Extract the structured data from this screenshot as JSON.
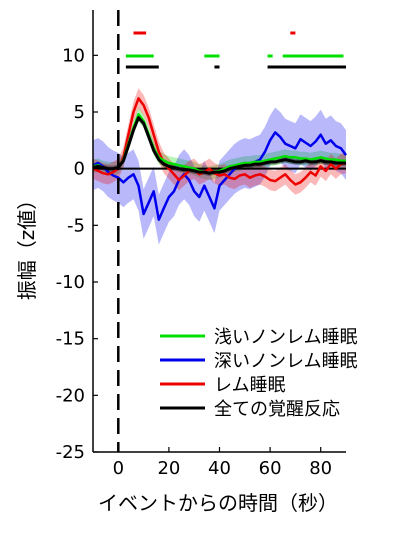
{
  "chart_data": {
    "type": "line",
    "xlabel": "イベントからの時間（秒）",
    "ylabel": "振幅（z値）",
    "xlim": [
      -10,
      90
    ],
    "ylim": [
      -25,
      14
    ],
    "xticks": [
      0,
      20,
      40,
      60,
      80
    ],
    "xtick_labels": [
      "0",
      "20",
      "40",
      "60",
      "80"
    ],
    "yticks": [
      -25,
      -20,
      -15,
      -10,
      -5,
      0,
      5,
      10
    ],
    "ytick_labels": [
      "-25",
      "-20",
      "-15",
      "-10",
      "-5",
      "0",
      "5",
      "10"
    ],
    "event_line_x": 0,
    "legend_position": "lower-right",
    "series": [
      {
        "name": "浅いノンレム睡眠",
        "color": "#00e000",
        "x": [
          -10,
          -8,
          -6,
          -4,
          -2,
          0,
          2,
          4,
          6,
          8,
          10,
          12,
          14,
          16,
          18,
          20,
          22,
          24,
          26,
          28,
          30,
          32,
          34,
          36,
          38,
          40,
          42,
          44,
          46,
          48,
          50,
          52,
          54,
          56,
          58,
          60,
          62,
          64,
          66,
          68,
          70,
          72,
          74,
          76,
          78,
          80,
          82,
          84,
          86,
          88,
          90
        ],
        "y": [
          0.2,
          0.3,
          0.1,
          0.0,
          0.0,
          0.1,
          0.8,
          2.2,
          3.6,
          4.8,
          4.2,
          3.0,
          1.8,
          1.0,
          0.7,
          0.5,
          0.4,
          0.3,
          0.2,
          0.1,
          0.0,
          -0.2,
          -0.3,
          -0.4,
          -0.3,
          -0.2,
          0.0,
          0.2,
          0.3,
          0.4,
          0.5,
          0.5,
          0.6,
          0.6,
          0.7,
          0.8,
          0.9,
          1.0,
          1.1,
          1.0,
          1.0,
          0.9,
          0.9,
          0.8,
          0.9,
          1.0,
          0.9,
          0.8,
          0.8,
          0.7,
          0.7
        ],
        "band": 0.6,
        "significance_bars": [
          [
            3,
            14
          ],
          [
            34,
            40
          ],
          [
            59,
            61
          ],
          [
            65,
            89
          ]
        ]
      },
      {
        "name": "深いノンレム睡眠",
        "color": "#0000ee",
        "x": [
          -10,
          -8,
          -6,
          -4,
          -2,
          0,
          2,
          4,
          6,
          8,
          10,
          12,
          14,
          16,
          18,
          20,
          22,
          24,
          26,
          28,
          30,
          32,
          34,
          36,
          38,
          40,
          42,
          44,
          46,
          48,
          50,
          52,
          54,
          56,
          58,
          60,
          62,
          64,
          66,
          68,
          70,
          72,
          74,
          76,
          78,
          80,
          82,
          84,
          86,
          88,
          90
        ],
        "y": [
          0.3,
          0.5,
          0.2,
          -0.3,
          -0.6,
          -0.8,
          -1.2,
          -0.8,
          -0.5,
          -1.5,
          -4.0,
          -3.0,
          -2.0,
          -4.5,
          -3.5,
          -2.5,
          -2.0,
          -1.0,
          -0.5,
          -1.0,
          -2.0,
          -2.5,
          -1.5,
          -2.5,
          -3.5,
          -1.5,
          -1.0,
          -0.5,
          0.0,
          0.3,
          0.5,
          0.4,
          0.6,
          0.8,
          1.5,
          2.5,
          3.2,
          2.8,
          2.2,
          2.0,
          1.8,
          2.6,
          2.3,
          2.0,
          2.4,
          3.0,
          2.2,
          2.5,
          2.0,
          1.8,
          1.2
        ],
        "band": 2.2
      },
      {
        "name": "レム睡眠",
        "color": "#ee0000",
        "x": [
          -10,
          -8,
          -6,
          -4,
          -2,
          0,
          2,
          4,
          6,
          8,
          10,
          12,
          14,
          16,
          18,
          20,
          22,
          24,
          26,
          28,
          30,
          32,
          34,
          36,
          38,
          40,
          42,
          44,
          46,
          48,
          50,
          52,
          54,
          56,
          58,
          60,
          62,
          64,
          66,
          68,
          70,
          72,
          74,
          76,
          78,
          80,
          82,
          84,
          86,
          88,
          90
        ],
        "y": [
          0.0,
          -0.2,
          -0.4,
          -0.5,
          -0.3,
          0.0,
          1.0,
          3.0,
          5.0,
          6.2,
          5.6,
          4.5,
          3.0,
          1.5,
          0.5,
          0.0,
          -0.5,
          -1.0,
          -0.6,
          -0.2,
          0.0,
          -0.5,
          -0.3,
          0.0,
          -0.4,
          -0.6,
          -0.5,
          -0.8,
          -0.9,
          -0.6,
          -0.5,
          -0.8,
          -0.6,
          -0.5,
          -0.7,
          -1.0,
          -1.1,
          -0.8,
          -0.5,
          -1.0,
          -1.4,
          -1.2,
          -0.8,
          -0.3,
          -0.6,
          0.2,
          -0.2,
          0.4,
          0.0,
          0.4,
          0.5
        ],
        "band": 0.9,
        "significance_bars": [
          [
            6,
            11
          ],
          [
            68,
            70
          ]
        ]
      },
      {
        "name": "全ての覚醒反応",
        "color": "#000000",
        "x": [
          -10,
          -8,
          -6,
          -4,
          -2,
          0,
          2,
          4,
          6,
          8,
          10,
          12,
          14,
          16,
          18,
          20,
          22,
          24,
          26,
          28,
          30,
          32,
          34,
          36,
          38,
          40,
          42,
          44,
          46,
          48,
          50,
          52,
          54,
          56,
          58,
          60,
          62,
          64,
          66,
          68,
          70,
          72,
          74,
          76,
          78,
          80,
          82,
          84,
          86,
          88,
          90
        ],
        "y": [
          0.1,
          0.2,
          0.1,
          0.0,
          0.0,
          0.1,
          0.7,
          2.0,
          3.4,
          4.5,
          4.0,
          2.8,
          1.6,
          0.8,
          0.4,
          0.2,
          0.1,
          0.0,
          -0.1,
          -0.1,
          -0.2,
          -0.3,
          -0.3,
          -0.4,
          -0.3,
          -0.3,
          -0.2,
          0.0,
          0.1,
          0.2,
          0.3,
          0.3,
          0.4,
          0.4,
          0.5,
          0.6,
          0.6,
          0.7,
          0.8,
          0.7,
          0.6,
          0.6,
          0.7,
          0.6,
          0.6,
          0.7,
          0.6,
          0.6,
          0.5,
          0.5,
          0.5
        ],
        "band": 0.25,
        "significance_bars": [
          [
            3,
            16
          ],
          [
            38,
            40
          ],
          [
            59,
            90
          ]
        ]
      }
    ],
    "zero_line": 0
  },
  "legend": {
    "items": [
      {
        "label": "浅いノンレム睡眠",
        "color": "#00e000"
      },
      {
        "label": "深いノンレム睡眠",
        "color": "#0000ee"
      },
      {
        "label": "レム睡眠",
        "color": "#ee0000"
      },
      {
        "label": "全ての覚醒反応",
        "color": "#000000"
      }
    ]
  }
}
